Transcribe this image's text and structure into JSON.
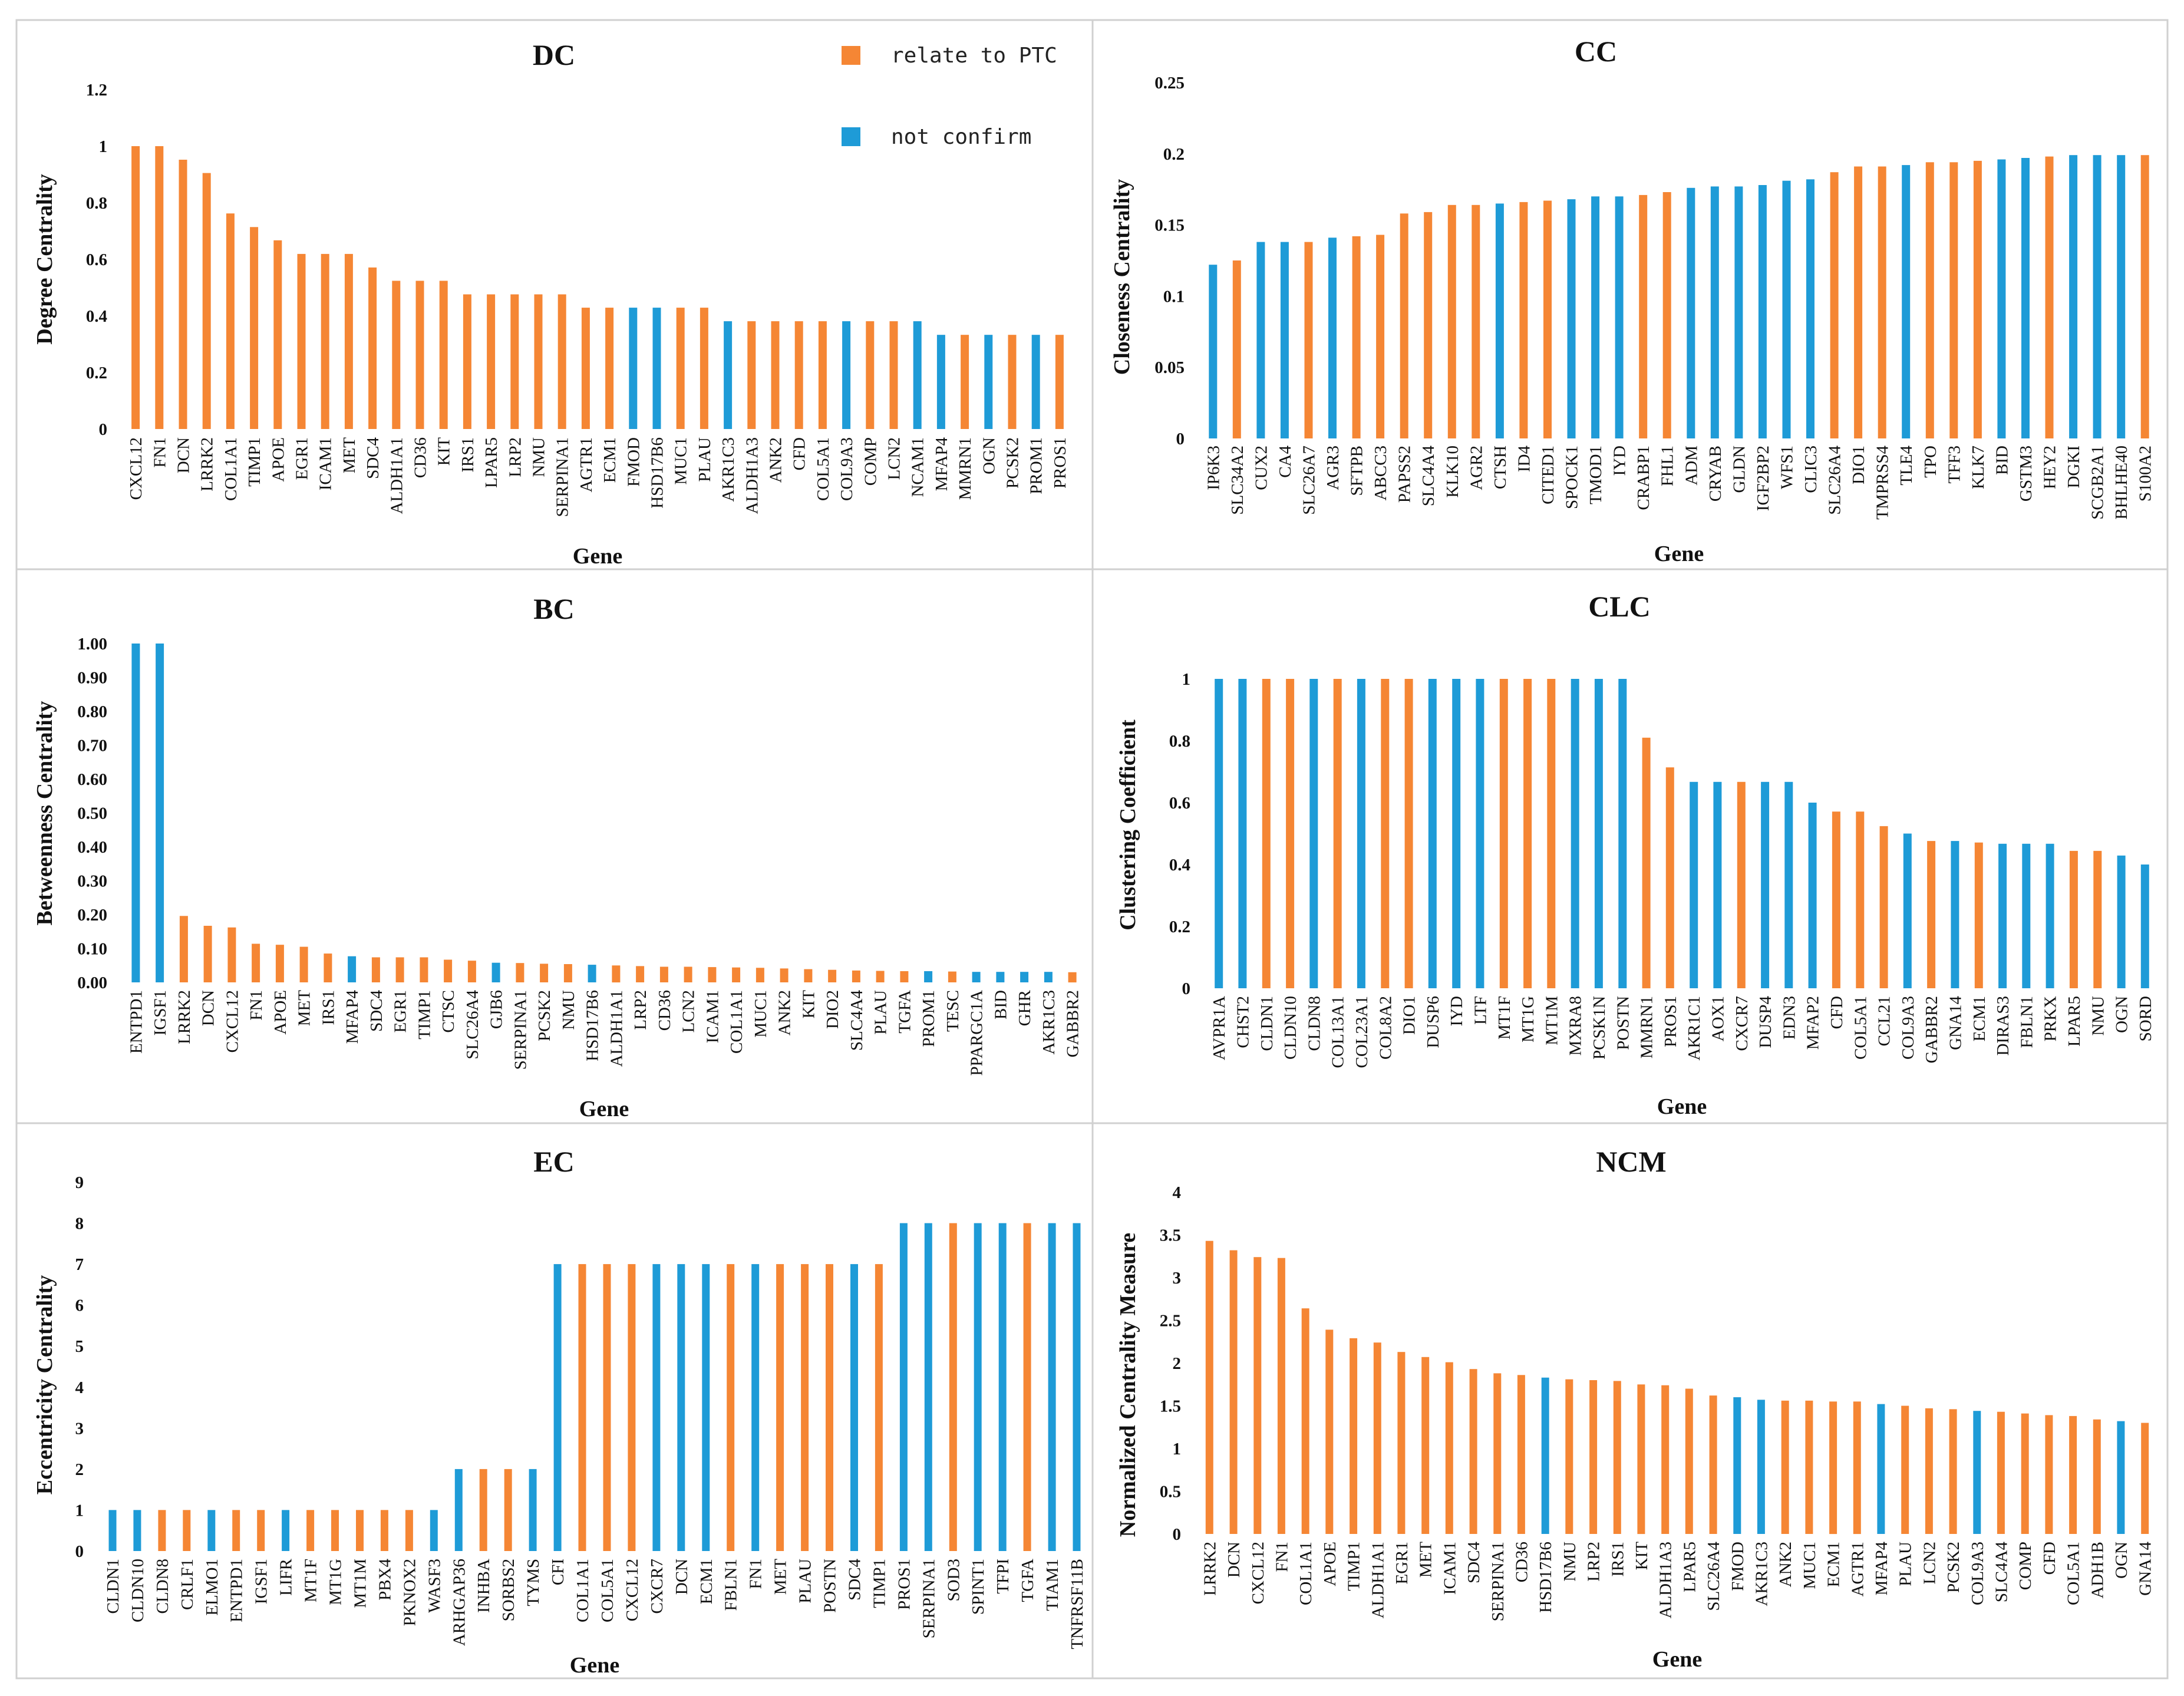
{
  "colors": {
    "relate": "#F58634",
    "not_confirm": "#1E9BD7"
  },
  "legend": [
    {
      "label": "relate to PTC",
      "key": "relate"
    },
    {
      "label": "not confirm",
      "key": "not_confirm"
    }
  ],
  "chart_data": [
    {
      "type": "bar",
      "title": "DC",
      "xlabel": "Gene",
      "ylabel": "Degree Centrality",
      "ylim": [
        0,
        1.2
      ],
      "yticks": [
        "0",
        "0.2",
        "0.4",
        "0.6",
        "0.8",
        "1",
        "1.2"
      ],
      "ytick_values": [
        0,
        0.2,
        0.4,
        0.6,
        0.8,
        1,
        1.2
      ],
      "categories": [
        "CXCL12",
        "FN1",
        "DCN",
        "LRRK2",
        "COL1A1",
        "TIMP1",
        "APOE",
        "EGR1",
        "ICAM1",
        "MET",
        "SDC4",
        "ALDH1A1",
        "CD36",
        "KIT",
        "IRS1",
        "LPAR5",
        "LRP2",
        "NMU",
        "SERPINA1",
        "AGTR1",
        "ECM1",
        "FMOD",
        "HSD17B6",
        "MUC1",
        "PLAU",
        "AKR1C3",
        "ALDH1A3",
        "ANK2",
        "CFD",
        "COL5A1",
        "COL9A3",
        "COMP",
        "LCN2",
        "NCAM1",
        "MFAP4",
        "MMRN1",
        "OGN",
        "PCSK2",
        "PROM1",
        "PROS1"
      ],
      "values": [
        1,
        1,
        0.952,
        0.905,
        0.762,
        0.714,
        0.667,
        0.619,
        0.619,
        0.619,
        0.571,
        0.524,
        0.524,
        0.524,
        0.476,
        0.476,
        0.476,
        0.476,
        0.476,
        0.429,
        0.429,
        0.429,
        0.429,
        0.429,
        0.429,
        0.381,
        0.381,
        0.381,
        0.381,
        0.381,
        0.381,
        0.381,
        0.381,
        0.381,
        0.333,
        0.333,
        0.333,
        0.333,
        0.333,
        0.333
      ],
      "status": [
        "r",
        "r",
        "r",
        "r",
        "r",
        "r",
        "r",
        "r",
        "r",
        "r",
        "r",
        "r",
        "r",
        "r",
        "r",
        "r",
        "r",
        "r",
        "r",
        "r",
        "r",
        "b",
        "b",
        "r",
        "r",
        "b",
        "r",
        "r",
        "r",
        "r",
        "b",
        "r",
        "r",
        "b",
        "b",
        "r",
        "b",
        "r",
        "b",
        "r"
      ]
    },
    {
      "type": "bar",
      "title": "CC",
      "xlabel": "Gene",
      "ylabel": "Closeness Centrality",
      "ylim": [
        0,
        0.25
      ],
      "yticks": [
        "0",
        "0.05",
        "0.1",
        "0.15",
        "0.2",
        "0.25"
      ],
      "ytick_values": [
        0,
        0.05,
        0.1,
        0.15,
        0.2,
        0.25
      ],
      "categories": [
        "IP6K3",
        "SLC34A2",
        "CUX2",
        "CA4",
        "SLC26A7",
        "AGR3",
        "SFTPB",
        "ABCC3",
        "PAPSS2",
        "SLC4A4",
        "KLK10",
        "AGR2",
        "CTSH",
        "ID4",
        "CITED1",
        "SPOCK1",
        "TMOD1",
        "IYD",
        "CRABP1",
        "FHL1",
        "ADM",
        "CRYAB",
        "GLDN",
        "IGF2BP2",
        "WFS1",
        "CLIC3",
        "SLC26A4",
        "DIO1",
        "TMPRSS4",
        "TLE4",
        "TPO",
        "TFF3",
        "KLK7",
        "BID",
        "GSTM3",
        "HEY2",
        "DGKI",
        "SCGB2A1",
        "BHLHE40",
        "S100A2"
      ],
      "values": [
        0.122,
        0.125,
        0.138,
        0.138,
        0.138,
        0.141,
        0.142,
        0.143,
        0.158,
        0.159,
        0.164,
        0.164,
        0.165,
        0.166,
        0.167,
        0.168,
        0.17,
        0.17,
        0.171,
        0.173,
        0.176,
        0.177,
        0.177,
        0.178,
        0.181,
        0.182,
        0.187,
        0.191,
        0.191,
        0.192,
        0.194,
        0.194,
        0.195,
        0.196,
        0.197,
        0.198,
        0.199,
        0.199,
        0.199,
        0.199
      ],
      "status": [
        "b",
        "r",
        "b",
        "b",
        "r",
        "b",
        "r",
        "r",
        "r",
        "r",
        "r",
        "r",
        "b",
        "r",
        "r",
        "b",
        "b",
        "b",
        "r",
        "r",
        "b",
        "b",
        "b",
        "b",
        "b",
        "b",
        "r",
        "r",
        "r",
        "b",
        "r",
        "r",
        "r",
        "b",
        "b",
        "r",
        "b",
        "b",
        "b",
        "r"
      ]
    },
    {
      "type": "bar",
      "title": "BC",
      "xlabel": "Gene",
      "ylabel": "Betweenness Centrality",
      "ylim": [
        0,
        1.0
      ],
      "yticks": [
        "0.00",
        "0.10",
        "0.20",
        "0.30",
        "0.40",
        "0.50",
        "0.60",
        "0.70",
        "0.80",
        "0.90",
        "1.00"
      ],
      "ytick_values": [
        0,
        0.1,
        0.2,
        0.3,
        0.4,
        0.5,
        0.6,
        0.7,
        0.8,
        0.9,
        1.0
      ],
      "categories": [
        "ENTPD1",
        "IGSF1",
        "LRRK2",
        "DCN",
        "CXCL12",
        "FN1",
        "APOE",
        "MET",
        "IRS1",
        "MFAP4",
        "SDC4",
        "EGR1",
        "TIMP1",
        "CTSC",
        "SLC26A4",
        "GJB6",
        "SERPINA1",
        "PCSK2",
        "NMU",
        "HSD17B6",
        "ALDH1A1",
        "LRP2",
        "CD36",
        "LCN2",
        "ICAM1",
        "COL1A1",
        "MUC1",
        "ANK2",
        "KIT",
        "DIO2",
        "SLC4A4",
        "PLAU",
        "TGFA",
        "PROM1",
        "TESC",
        "PPARGC1A",
        "BID",
        "GHR",
        "AKR1C3",
        "GABBR2"
      ],
      "values": [
        1.0,
        1.0,
        0.196,
        0.167,
        0.162,
        0.114,
        0.111,
        0.105,
        0.085,
        0.077,
        0.074,
        0.074,
        0.074,
        0.067,
        0.064,
        0.058,
        0.057,
        0.055,
        0.054,
        0.052,
        0.05,
        0.048,
        0.046,
        0.046,
        0.045,
        0.044,
        0.043,
        0.041,
        0.039,
        0.037,
        0.035,
        0.034,
        0.033,
        0.033,
        0.032,
        0.031,
        0.031,
        0.031,
        0.031,
        0.03
      ],
      "status": [
        "b",
        "b",
        "r",
        "r",
        "r",
        "r",
        "r",
        "r",
        "r",
        "b",
        "r",
        "r",
        "r",
        "r",
        "r",
        "b",
        "r",
        "r",
        "r",
        "b",
        "r",
        "r",
        "r",
        "r",
        "r",
        "r",
        "r",
        "r",
        "r",
        "r",
        "r",
        "r",
        "r",
        "b",
        "r",
        "b",
        "b",
        "b",
        "b",
        "r"
      ]
    },
    {
      "type": "bar",
      "title": "CLC",
      "xlabel": "Gene",
      "ylabel": "Clustering Coefficient",
      "ylim": [
        0,
        1
      ],
      "yticks": [
        "0",
        "0.2",
        "0.4",
        "0.6",
        "0.8",
        "1"
      ],
      "ytick_values": [
        0,
        0.2,
        0.4,
        0.6,
        0.8,
        1
      ],
      "categories": [
        "AVPR1A",
        "CHST2",
        "CLDN1",
        "CLDN10",
        "CLDN8",
        "COL13A1",
        "COL23A1",
        "COL8A2",
        "DIO1",
        "DUSP6",
        "IYD",
        "LTF",
        "MT1F",
        "MT1G",
        "MT1M",
        "MXRA8",
        "PCSK1N",
        "POSTN",
        "MMRN1",
        "PROS1",
        "AKR1C1",
        "AOX1",
        "CXCR7",
        "DUSP4",
        "EDN3",
        "MFAP2",
        "CFD",
        "COL5A1",
        "CCL21",
        "COL9A3",
        "GABBR2",
        "GNA14",
        "ECM1",
        "DIRAS3",
        "FBLN1",
        "PRKX",
        "LPAR5",
        "NMU",
        "OGN",
        "SORD"
      ],
      "values": [
        1,
        1,
        1,
        1,
        1,
        1,
        1,
        1,
        1,
        1,
        1,
        1,
        1,
        1,
        1,
        1,
        1,
        1,
        0.81,
        0.714,
        0.667,
        0.667,
        0.667,
        0.667,
        0.667,
        0.6,
        0.571,
        0.571,
        0.524,
        0.5,
        0.476,
        0.476,
        0.471,
        0.467,
        0.467,
        0.467,
        0.444,
        0.444,
        0.429,
        0.4
      ],
      "status": [
        "b",
        "b",
        "r",
        "r",
        "b",
        "r",
        "b",
        "r",
        "r",
        "b",
        "b",
        "b",
        "r",
        "r",
        "r",
        "b",
        "b",
        "b",
        "r",
        "r",
        "b",
        "b",
        "r",
        "b",
        "b",
        "b",
        "r",
        "r",
        "r",
        "b",
        "r",
        "b",
        "r",
        "b",
        "b",
        "b",
        "r",
        "r",
        "b",
        "b"
      ]
    },
    {
      "type": "bar",
      "title": "EC",
      "xlabel": "Gene",
      "ylabel": "Eccentricity Centrality",
      "ylim": [
        0,
        9
      ],
      "yticks": [
        "0",
        "1",
        "2",
        "3",
        "4",
        "5",
        "6",
        "7",
        "8",
        "9"
      ],
      "ytick_values": [
        0,
        1,
        2,
        3,
        4,
        5,
        6,
        7,
        8,
        9
      ],
      "categories": [
        "CLDN1",
        "CLDN10",
        "CLDN8",
        "CRLF1",
        "ELMO1",
        "ENTPD1",
        "IGSF1",
        "LIFR",
        "MT1F",
        "MT1G",
        "MT1M",
        "PBX4",
        "PKNOX2",
        "WASF3",
        "ARHGAP36",
        "INHBA",
        "SORBS2",
        "TYMS",
        "CFI",
        "COL1A1",
        "COL5A1",
        "CXCL12",
        "CXCR7",
        "DCN",
        "ECM1",
        "FBLN1",
        "FN1",
        "MET",
        "PLAU",
        "POSTN",
        "SDC4",
        "TIMP1",
        "PROS1",
        "SERPINA1",
        "SOD3",
        "SPINT1",
        "TFPI",
        "TGFA",
        "TIAM1",
        "TNFRSF11B"
      ],
      "values": [
        1,
        1,
        1,
        1,
        1,
        1,
        1,
        1,
        1,
        1,
        1,
        1,
        1,
        1,
        2,
        2,
        2,
        2,
        7,
        7,
        7,
        7,
        7,
        7,
        7,
        7,
        7,
        7,
        7,
        7,
        7,
        7,
        8,
        8,
        8,
        8,
        8,
        8,
        8,
        8
      ],
      "status": [
        "b",
        "b",
        "r",
        "r",
        "b",
        "r",
        "r",
        "b",
        "r",
        "r",
        "r",
        "r",
        "r",
        "b",
        "b",
        "r",
        "r",
        "b",
        "b",
        "r",
        "r",
        "r",
        "b",
        "b",
        "b",
        "r",
        "b",
        "r",
        "r",
        "r",
        "b",
        "r",
        "b",
        "b",
        "r",
        "b",
        "b",
        "r",
        "b",
        "b"
      ]
    },
    {
      "type": "bar",
      "title": "NCM",
      "xlabel": "Gene",
      "ylabel": "Normalized Centrality Measure",
      "ylim": [
        0,
        4
      ],
      "yticks": [
        "0",
        "0.5",
        "1",
        "1.5",
        "2",
        "2.5",
        "3",
        "3.5",
        "4"
      ],
      "ytick_values": [
        0,
        0.5,
        1,
        1.5,
        2,
        2.5,
        3,
        3.5,
        4
      ],
      "categories": [
        "LRRK2",
        "DCN",
        "CXCL12",
        "FN1",
        "COL1A1",
        "APOE",
        "TIMP1",
        "ALDH1A1",
        "EGR1",
        "MET",
        "ICAM1",
        "SDC4",
        "SERPINA1",
        "CD36",
        "HSD17B6",
        "NMU",
        "LRP2",
        "IRS1",
        "KIT",
        "ALDH1A3",
        "LPAR5",
        "SLC26A4",
        "FMOD",
        "AKR1C3",
        "ANK2",
        "MUC1",
        "ECM1",
        "AGTR1",
        "MFAP4",
        "PLAU",
        "LCN2",
        "PCSK2",
        "COL9A3",
        "SLC4A4",
        "COMP",
        "CFD",
        "COL5A1",
        "ADH1B",
        "OGN",
        "GNA14"
      ],
      "values": [
        3.43,
        3.32,
        3.24,
        3.23,
        2.64,
        2.39,
        2.29,
        2.24,
        2.13,
        2.07,
        2.01,
        1.93,
        1.88,
        1.86,
        1.83,
        1.81,
        1.8,
        1.79,
        1.75,
        1.74,
        1.7,
        1.62,
        1.6,
        1.57,
        1.56,
        1.56,
        1.55,
        1.55,
        1.52,
        1.5,
        1.47,
        1.46,
        1.44,
        1.43,
        1.41,
        1.39,
        1.38,
        1.34,
        1.32,
        1.3
      ],
      "status": [
        "r",
        "r",
        "r",
        "r",
        "r",
        "r",
        "r",
        "r",
        "r",
        "r",
        "r",
        "r",
        "r",
        "r",
        "b",
        "r",
        "r",
        "r",
        "r",
        "r",
        "r",
        "r",
        "b",
        "b",
        "r",
        "r",
        "r",
        "r",
        "b",
        "r",
        "r",
        "r",
        "b",
        "r",
        "r",
        "r",
        "r",
        "r",
        "b",
        "r"
      ]
    }
  ]
}
